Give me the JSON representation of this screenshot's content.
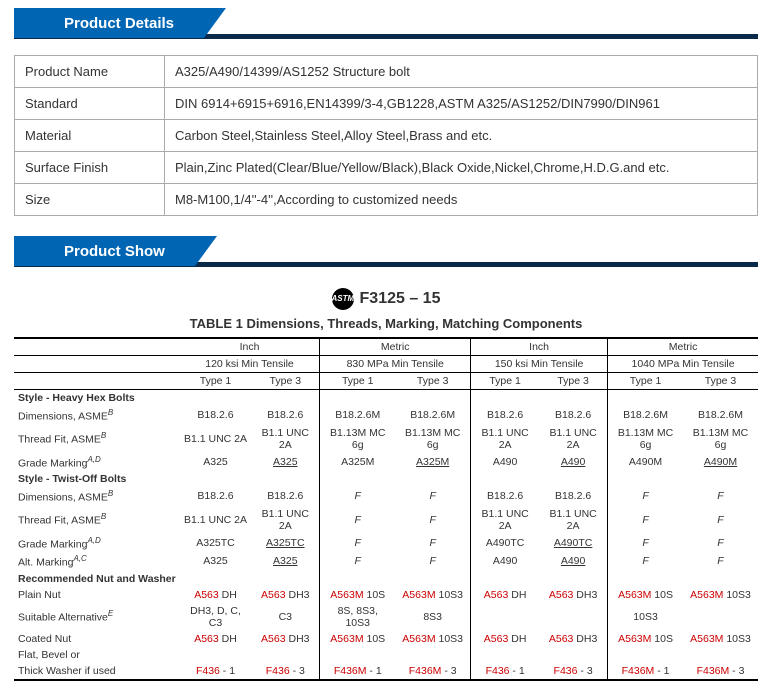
{
  "headers": {
    "details": "Product Details",
    "show": "Product Show"
  },
  "info": {
    "rows": [
      {
        "label": "Product Name",
        "value": "A325/A490/14399/AS1252 Structure bolt"
      },
      {
        "label": "Standard",
        "value": "DIN 6914+6915+6916,EN14399/3-4,GB1228,ASTM A325/AS1252/DIN7990/DIN961"
      },
      {
        "label": "Material",
        "value": "Carbon Steel,Stainless Steel,Alloy Steel,Brass and etc."
      },
      {
        "label": "Surface Finish",
        "value": "Plain,Zinc Plated(Clear/Blue/Yellow/Black),Black Oxide,Nickel,Chrome,H.D.G.and etc."
      },
      {
        "label": "Size",
        "value": "M8-M100,1/4''-4'',According to customized needs"
      }
    ]
  },
  "spec": {
    "logo": "ASTM",
    "standard": "F3125 – 15",
    "caption": "TABLE 1 Dimensions, Threads, Marking, Matching Components",
    "groupTop": [
      "Inch",
      "Metric",
      "Inch",
      "Metric"
    ],
    "groupSub": [
      "120 ksi Min Tensile",
      "830 MPa Min Tensile",
      "150 ksi Min Tensile",
      "1040 MPa Min Tensile"
    ],
    "types": [
      "Type 1",
      "Type 3",
      "Type 1",
      "Type 3",
      "Type 1",
      "Type 3",
      "Type 1",
      "Type 3"
    ],
    "rows": [
      {
        "label": "Style - Heavy Hex Bolts",
        "bold": true,
        "cells": [
          "",
          "",
          "",
          "",
          "",
          "",
          "",
          ""
        ]
      },
      {
        "label": "Dimensions, ASME",
        "sup": "B",
        "cells": [
          "B18.2.6",
          "B18.2.6",
          "B18.2.6M",
          "B18.2.6M",
          "B18.2.6",
          "B18.2.6",
          "B18.2.6M",
          "B18.2.6M"
        ]
      },
      {
        "label": "Thread Fit, ASME",
        "sup": "B",
        "cells": [
          "B1.1 UNC 2A",
          "B1.1 UNC 2A",
          "B1.13M MC 6g",
          "B1.13M MC 6g",
          "B1.1 UNC 2A",
          "B1.1 UNC 2A",
          "B1.13M MC 6g",
          "B1.13M MC 6g"
        ]
      },
      {
        "label": "Grade Marking",
        "sup": "A,D",
        "cells": [
          "A325",
          "<u>A325</u>",
          "A325M",
          "<u>A325M</u>",
          "A490",
          "<u>A490</u>",
          "A490M",
          "<u>A490M</u>"
        ]
      },
      {
        "label": "Style - Twist-Off Bolts",
        "bold": true,
        "cells": [
          "",
          "",
          "",
          "",
          "",
          "",
          "",
          ""
        ]
      },
      {
        "label": "Dimensions, ASME",
        "sup": "B",
        "cells": [
          "B18.2.6",
          "B18.2.6",
          "<i>F</i>",
          "<i>F</i>",
          "B18.2.6",
          "B18.2.6",
          "<i>F</i>",
          "<i>F</i>"
        ]
      },
      {
        "label": "Thread Fit, ASME",
        "sup": "B",
        "cells": [
          "B1.1 UNC 2A",
          "B1.1 UNC 2A",
          "<i>F</i>",
          "<i>F</i>",
          "B1.1 UNC 2A",
          "B1.1 UNC 2A",
          "<i>F</i>",
          "<i>F</i>"
        ]
      },
      {
        "label": "Grade Marking",
        "sup": "A,D",
        "cells": [
          "A325TC",
          "<u>A325TC</u>",
          "<i>F</i>",
          "<i>F</i>",
          "A490TC",
          "<u>A490TC</u>",
          "<i>F</i>",
          "<i>F</i>"
        ]
      },
      {
        "label": "Alt. Marking",
        "sup": "A,C",
        "cells": [
          "A325",
          "<u>A325</u>",
          "<i>F</i>",
          "<i>F</i>",
          "A490",
          "<u>A490</u>",
          "<i>F</i>",
          "<i>F</i>"
        ]
      },
      {
        "label": "Recommended Nut and Washer",
        "bold": true,
        "cells": [
          "",
          "",
          "",
          "",
          "",
          "",
          "",
          ""
        ]
      },
      {
        "label": "Plain Nut",
        "cells": [
          "<r>A563</r> DH",
          "<r>A563</r> DH3",
          "<r>A563M</r> 10S",
          "<r>A563M</r> 10S3",
          "<r>A563</r> DH",
          "<r>A563</r> DH3",
          "<r>A563M</r> 10S",
          "<r>A563M</r> 10S3"
        ]
      },
      {
        "label": "Suitable Alternative",
        "sup": "E",
        "cells": [
          "DH3, D, C, C3",
          "C3",
          "8S, 8S3, 10S3",
          "8S3",
          "",
          "",
          "10S3",
          ""
        ]
      },
      {
        "label": "Coated Nut",
        "cells": [
          "<r>A563</r> DH",
          "<r>A563</r> DH3",
          "<r>A563M</r> 10S",
          "<r>A563M</r> 10S3",
          "<r>A563</r> DH",
          "<r>A563</r> DH3",
          "<r>A563M</r> 10S",
          "<r>A563M</r> 10S3"
        ]
      },
      {
        "label": "Flat, Bevel or",
        "cells": [
          "",
          "",
          "",
          "",
          "",
          "",
          "",
          ""
        ]
      },
      {
        "label": "Thick Washer if used",
        "cells": [
          "<r>F436</r> - 1",
          "<r>F436</r> - 3",
          "<r>F436M</r> - 1",
          "<r>F436M</r> - 3",
          "<r>F436</r> - 1",
          "<r>F436</r> - 3",
          "<r>F436M</r> - 1",
          "<r>F436M</r> - 3"
        ],
        "bottom": true
      }
    ]
  }
}
